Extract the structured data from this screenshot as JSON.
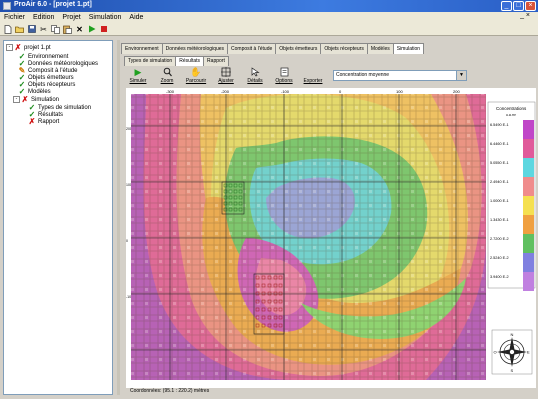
{
  "window": {
    "title": "ProAir 6.0 - [projet 1.pt]",
    "colors": {
      "titlebar": "#2a5fc6",
      "chrome": "#d4d0c8"
    }
  },
  "menu": {
    "items": [
      "Fichier",
      "Edition",
      "Projet",
      "Simulation",
      "Aide"
    ],
    "right_label": "_ ×"
  },
  "toolbar": {
    "icons": [
      "new-file-icon",
      "open-folder-icon",
      "save-icon",
      "cut-icon",
      "copy-icon",
      "paste-icon",
      "delete-icon",
      "run-icon",
      "stop-icon"
    ]
  },
  "tree": {
    "root": "projet 1.pt",
    "items": [
      {
        "label": "Environnement",
        "status": "check"
      },
      {
        "label": "Données météorologiques",
        "status": "check"
      },
      {
        "label": "Composit à l'étude",
        "status": "pencil"
      },
      {
        "label": "Objets émetteurs",
        "status": "check"
      },
      {
        "label": "Objets récepteurs",
        "status": "check"
      },
      {
        "label": "Modèles",
        "status": "check"
      },
      {
        "label": "Simulation",
        "status": "cross"
      },
      {
        "label": "Types de simulation",
        "status": "check"
      },
      {
        "label": "Résultats",
        "status": "check"
      },
      {
        "label": "Rapport",
        "status": "cross"
      }
    ]
  },
  "tabs_main": [
    "Environnement",
    "Données météorologiques",
    "Composit à l'étude",
    "Objets émetteurs",
    "Objets récepteurs",
    "Modèles",
    "Simulation"
  ],
  "tabs_main_selected": 6,
  "tabs_sub": [
    "Types de simulation",
    "Résultats",
    "Rapport"
  ],
  "tabs_sub_selected": 1,
  "sim_tools": [
    {
      "label": "Simuler",
      "icon": "play-icon"
    },
    {
      "label": "Zoom",
      "icon": "magnifier-icon"
    },
    {
      "label": "Parcourir",
      "icon": "hand-icon"
    },
    {
      "label": "Ajuster",
      "icon": "fit-icon"
    },
    {
      "label": "Détails",
      "icon": "cursor-icon"
    },
    {
      "label": "Options",
      "icon": "options-icon"
    },
    {
      "label": "Exporter",
      "icon": "export-icon"
    }
  ],
  "result_select": {
    "value": "Concentration moyenne"
  },
  "map": {
    "ruler_labels_top": [
      "-300",
      "-200",
      "-100",
      "0",
      "100",
      "200"
    ],
    "ruler_labels_left": [
      "200",
      "100",
      "0",
      "-100"
    ],
    "legend": {
      "title": "Concentrations",
      "unit": "u.a.m³",
      "values": [
        "6.5490 E-1",
        "6.4460 E-1",
        "5.0550 E-1",
        "2.4940 E-1",
        "1.0000 E-1",
        "1.3430 E-1",
        "2.7200 E-2",
        "2.5240 E-2",
        "3.9400 E-2"
      ],
      "colors": [
        "#c046c8",
        "#e05a9a",
        "#5dd7e0",
        "#f08c8c",
        "#f5e050",
        "#f0a040",
        "#60c060",
        "#8080e0",
        "#c080e0"
      ]
    },
    "compass": "compass-rose-icon"
  },
  "status": {
    "coords": "Coordonnées: (95.1 : 220.2) mètres"
  }
}
